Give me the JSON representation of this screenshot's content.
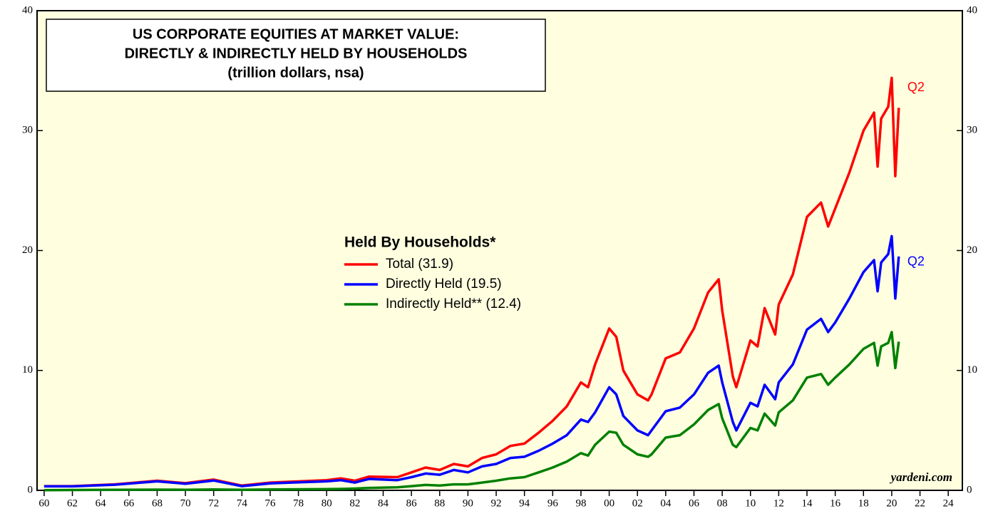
{
  "chart_data": {
    "type": "line",
    "title": "US CORPORATE EQUITIES AT MARKET VALUE:",
    "subtitle": "DIRECTLY & INDIRECTLY HELD BY HOUSEHOLDS",
    "unit_note": "(trillion dollars, nsa)",
    "legend_title": "Held By Households*",
    "x": [
      1960,
      1962,
      1965,
      1968,
      1970,
      1972,
      1974,
      1976,
      1980,
      1981,
      1982,
      1983,
      1985,
      1986,
      1987,
      1988,
      1989,
      1990,
      1991,
      1992,
      1993,
      1994,
      1995,
      1996,
      1997,
      1998,
      1998.5,
      1999,
      2000,
      2000.5,
      2001,
      2002,
      2002.75,
      2003,
      2004,
      2005,
      2006,
      2007,
      2007.75,
      2008,
      2008.75,
      2009,
      2010,
      2010.5,
      2011,
      2011.75,
      2012,
      2013,
      2014,
      2015,
      2015.5,
      2016,
      2017,
      2018,
      2018.75,
      2019,
      2019.25,
      2019.75,
      2020,
      2020.25,
      2020.5
    ],
    "series": [
      {
        "name": "Total (31.9)",
        "color": "#ff0000",
        "values": [
          0.35,
          0.35,
          0.5,
          0.8,
          0.6,
          0.9,
          0.4,
          0.65,
          0.85,
          1.0,
          0.8,
          1.15,
          1.1,
          1.5,
          1.9,
          1.7,
          2.2,
          2.0,
          2.7,
          3.0,
          3.7,
          3.9,
          4.8,
          5.8,
          7.0,
          9.0,
          8.6,
          10.5,
          13.5,
          12.8,
          10.0,
          8.0,
          7.5,
          8.0,
          11.0,
          11.5,
          13.5,
          16.5,
          17.6,
          15.0,
          9.5,
          8.6,
          12.5,
          12.0,
          15.2,
          13.0,
          15.5,
          18.0,
          22.8,
          24.0,
          22.0,
          23.5,
          26.5,
          30.0,
          31.5,
          27.0,
          31.0,
          32.0,
          34.4,
          26.2,
          31.9
        ]
      },
      {
        "name": "Directly Held (19.5)",
        "color": "#0000ff",
        "values": [
          0.33,
          0.33,
          0.47,
          0.75,
          0.55,
          0.82,
          0.35,
          0.58,
          0.75,
          0.85,
          0.65,
          0.95,
          0.85,
          1.1,
          1.4,
          1.3,
          1.7,
          1.5,
          2.0,
          2.2,
          2.7,
          2.8,
          3.3,
          3.9,
          4.6,
          5.9,
          5.7,
          6.5,
          8.6,
          8.0,
          6.2,
          5.0,
          4.6,
          5.0,
          6.6,
          6.9,
          8.0,
          9.8,
          10.4,
          9.0,
          5.7,
          5.0,
          7.3,
          7.0,
          8.8,
          7.6,
          9.0,
          10.5,
          13.4,
          14.3,
          13.2,
          14.0,
          16.0,
          18.2,
          19.2,
          16.6,
          19.0,
          19.7,
          21.2,
          16.0,
          19.5
        ]
      },
      {
        "name": "Indirectly Held** (12.4)",
        "color": "#008000",
        "values": [
          0.02,
          0.03,
          0.04,
          0.06,
          0.05,
          0.07,
          0.05,
          0.07,
          0.1,
          0.12,
          0.15,
          0.2,
          0.25,
          0.35,
          0.45,
          0.4,
          0.5,
          0.5,
          0.65,
          0.8,
          1.0,
          1.1,
          1.5,
          1.9,
          2.4,
          3.1,
          2.9,
          3.8,
          4.9,
          4.8,
          3.8,
          3.0,
          2.8,
          3.0,
          4.4,
          4.6,
          5.5,
          6.7,
          7.2,
          6.0,
          3.8,
          3.6,
          5.2,
          5.0,
          6.4,
          5.4,
          6.5,
          7.5,
          9.4,
          9.7,
          8.8,
          9.4,
          10.5,
          11.8,
          12.3,
          10.4,
          12.0,
          12.3,
          13.2,
          10.2,
          12.4
        ]
      }
    ],
    "annotations": [
      {
        "text": "Q2",
        "color": "#ff0000",
        "x": 2020.5,
        "y": 31.9
      },
      {
        "text": "Q2",
        "color": "#0000ff",
        "x": 2020.5,
        "y": 19.5
      }
    ],
    "source": "yardeni.com",
    "xlim": [
      1959.5,
      2025
    ],
    "xticks": [
      {
        "value": 1960,
        "label": "60"
      },
      {
        "value": 1962,
        "label": "62"
      },
      {
        "value": 1964,
        "label": "64"
      },
      {
        "value": 1966,
        "label": "66"
      },
      {
        "value": 1968,
        "label": "68"
      },
      {
        "value": 1970,
        "label": "70"
      },
      {
        "value": 1972,
        "label": "72"
      },
      {
        "value": 1974,
        "label": "74"
      },
      {
        "value": 1976,
        "label": "76"
      },
      {
        "value": 1978,
        "label": "78"
      },
      {
        "value": 1980,
        "label": "80"
      },
      {
        "value": 1982,
        "label": "82"
      },
      {
        "value": 1984,
        "label": "84"
      },
      {
        "value": 1986,
        "label": "86"
      },
      {
        "value": 1988,
        "label": "88"
      },
      {
        "value": 1990,
        "label": "90"
      },
      {
        "value": 1992,
        "label": "92"
      },
      {
        "value": 1994,
        "label": "94"
      },
      {
        "value": 1996,
        "label": "96"
      },
      {
        "value": 1998,
        "label": "98"
      },
      {
        "value": 2000,
        "label": "00"
      },
      {
        "value": 2002,
        "label": "02"
      },
      {
        "value": 2004,
        "label": "04"
      },
      {
        "value": 2006,
        "label": "06"
      },
      {
        "value": 2008,
        "label": "08"
      },
      {
        "value": 2010,
        "label": "10"
      },
      {
        "value": 2012,
        "label": "12"
      },
      {
        "value": 2014,
        "label": "14"
      },
      {
        "value": 2016,
        "label": "16"
      },
      {
        "value": 2018,
        "label": "18"
      },
      {
        "value": 2020,
        "label": "20"
      },
      {
        "value": 2022,
        "label": "22"
      },
      {
        "value": 2024,
        "label": "24"
      }
    ],
    "ylim": [
      0,
      40
    ],
    "yticks": [
      0,
      10,
      20,
      30,
      40
    ],
    "y2lim": [
      0,
      40
    ],
    "y2ticks": [
      0,
      10,
      20,
      30,
      40
    ],
    "background": "#ffffe0"
  }
}
